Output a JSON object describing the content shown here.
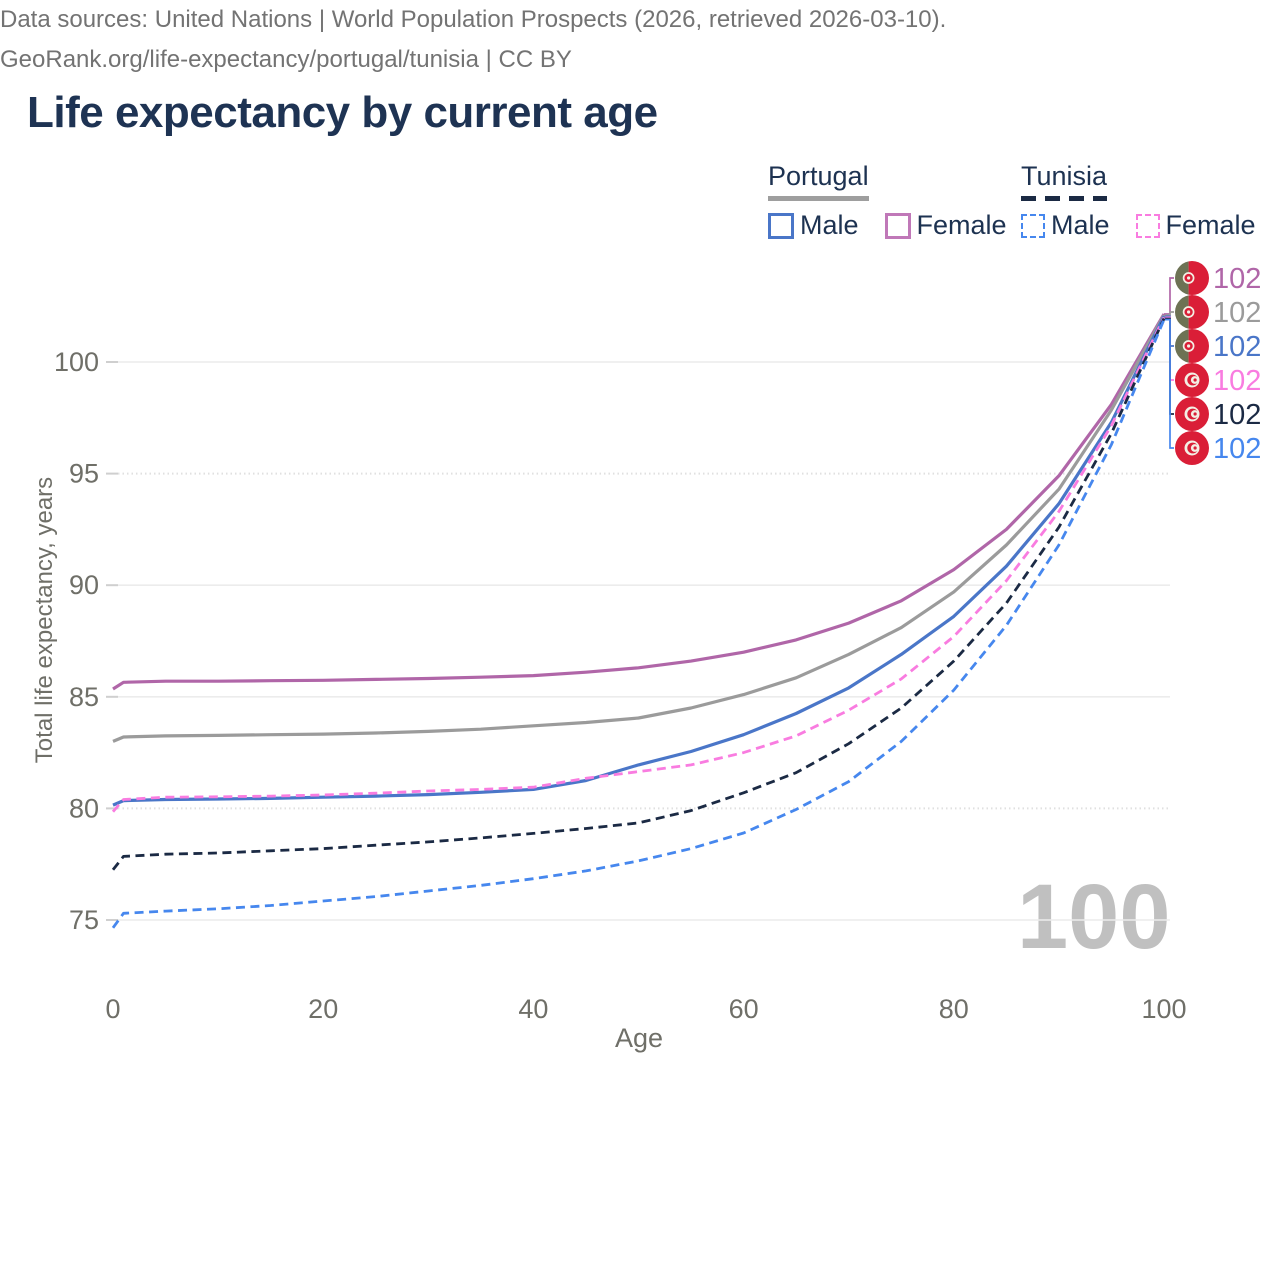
{
  "header": {
    "title": "Life expectancy by current age"
  },
  "legend": {
    "portugal": {
      "label": "Portugal",
      "male": "Male",
      "female": "Female"
    },
    "tunisia": {
      "label": "Tunisia",
      "male": "Male",
      "female": "Female"
    }
  },
  "axes": {
    "x_label": "Age",
    "y_label": "Total life expectancy, years"
  },
  "watermark": "100",
  "footer": {
    "line1": "Data sources: United Nations | World Population Prospects (2026, retrieved 2026-03-10).",
    "line2": "GeoRank.org/life-expectancy/portugal/tunisia | CC BY"
  },
  "colors": {
    "title": "#1e3353",
    "legend_text": "#1d3251",
    "axis_text": "#6f6f68",
    "grid": "#ececec",
    "grid_dotted": "#e0e0e0",
    "tick": "#cfcfcf",
    "watermark": "#c0c0c0",
    "footer_text": "#737373",
    "portugal_underline": "#9e9e9e",
    "tunisia_underline": "#1b2a44",
    "portugal_male": "#4a76c8",
    "portugal_female": "#c078b8",
    "portugal_both": "#9b9b9b",
    "tunisia_male": "#4687ee",
    "tunisia_female": "#f97ce0",
    "tunisia_both": "#1b2a44",
    "flag_red": "#da1e37",
    "flag_green": "#6d7254",
    "flag_white": "#f3efe4"
  },
  "chart_data": {
    "type": "line",
    "title": "Life expectancy by current age",
    "xlabel": "Age",
    "ylabel": "Total life expectancy, years",
    "xlim": [
      0,
      100
    ],
    "ylim": [
      73.5,
      103
    ],
    "x_ticks": [
      0,
      20,
      40,
      60,
      80,
      100
    ],
    "y_ticks": [
      75,
      80,
      85,
      90,
      95,
      100
    ],
    "grid": true,
    "legend_position": "top-right",
    "x": [
      0,
      1,
      5,
      10,
      15,
      20,
      25,
      30,
      35,
      40,
      45,
      50,
      55,
      60,
      65,
      70,
      75,
      80,
      85,
      90,
      95,
      100
    ],
    "series": [
      {
        "name": "Portugal Female",
        "country": "Portugal",
        "sex": "Female",
        "line_style": "solid",
        "color": "#b066a8",
        "end_label": "102",
        "values": [
          85.35,
          85.65,
          85.7,
          85.7,
          85.72,
          85.74,
          85.78,
          85.82,
          85.88,
          85.95,
          86.1,
          86.3,
          86.6,
          87.0,
          87.55,
          88.3,
          89.3,
          90.7,
          92.5,
          94.9,
          98.1,
          102.15
        ]
      },
      {
        "name": "Portugal",
        "country": "Portugal",
        "sex": "Both",
        "line_style": "solid",
        "color": "#9b9b9b",
        "end_label": "102",
        "values": [
          83.0,
          83.2,
          83.25,
          83.27,
          83.3,
          83.33,
          83.38,
          83.45,
          83.55,
          83.7,
          83.85,
          84.05,
          84.5,
          85.1,
          85.85,
          86.9,
          88.1,
          89.7,
          91.8,
          94.3,
          97.85,
          102.1
        ]
      },
      {
        "name": "Portugal Male",
        "country": "Portugal",
        "sex": "Male",
        "line_style": "solid",
        "color": "#4a76c8",
        "end_label": "102",
        "values": [
          80.15,
          80.35,
          80.4,
          80.42,
          80.45,
          80.5,
          80.55,
          80.62,
          80.72,
          80.85,
          81.25,
          81.95,
          82.55,
          83.3,
          84.25,
          85.4,
          86.9,
          88.6,
          90.85,
          93.65,
          97.3,
          102.05
        ]
      },
      {
        "name": "Tunisia Female",
        "country": "Tunisia",
        "sex": "Female",
        "line_style": "dashed",
        "color": "#f97ce0",
        "end_label": "102",
        "values": [
          79.85,
          80.4,
          80.5,
          80.52,
          80.55,
          80.6,
          80.68,
          80.78,
          80.85,
          80.95,
          81.35,
          81.65,
          81.95,
          82.5,
          83.25,
          84.4,
          85.8,
          87.7,
          90.2,
          93.3,
          97.15,
          102.0
        ]
      },
      {
        "name": "Tunisia",
        "country": "Tunisia",
        "sex": "Both",
        "line_style": "dashed",
        "color": "#1b2a44",
        "end_label": "102",
        "values": [
          77.25,
          77.85,
          77.95,
          78.0,
          78.1,
          78.2,
          78.35,
          78.5,
          78.68,
          78.88,
          79.1,
          79.35,
          79.9,
          80.7,
          81.6,
          82.9,
          84.5,
          86.6,
          89.2,
          92.6,
          96.8,
          101.95
        ]
      },
      {
        "name": "Tunisia Male",
        "country": "Tunisia",
        "sex": "Male",
        "line_style": "dashed",
        "color": "#4687ee",
        "end_label": "102",
        "values": [
          74.65,
          75.3,
          75.4,
          75.5,
          75.65,
          75.85,
          76.05,
          76.3,
          76.55,
          76.85,
          77.2,
          77.65,
          78.2,
          78.9,
          79.95,
          81.2,
          83.0,
          85.3,
          88.2,
          91.8,
          96.3,
          101.9
        ]
      }
    ]
  }
}
